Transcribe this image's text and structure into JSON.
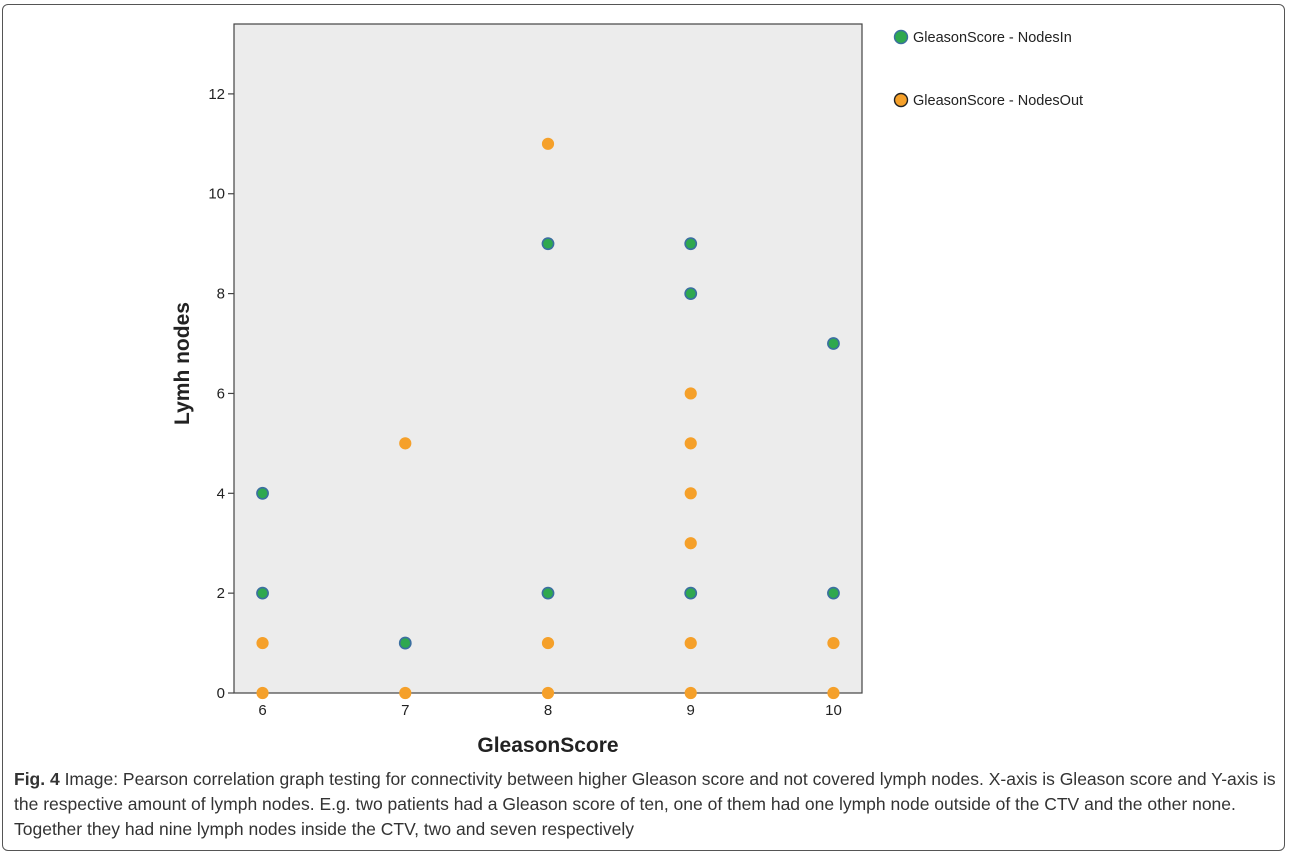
{
  "chart_data": {
    "type": "scatter",
    "xlabel": "GleasonScore",
    "ylabel": "Lymh nodes",
    "xlim": [
      5.8,
      10.2
    ],
    "ylim": [
      0,
      13.4
    ],
    "xticks": [
      6,
      7,
      8,
      9,
      10
    ],
    "yticks": [
      0,
      2,
      4,
      6,
      8,
      10,
      12
    ],
    "grid": false,
    "legend_position": "top-right, outside plot",
    "plot_background": "#ececec",
    "series": [
      {
        "name": "GleasonScore - NodesIn",
        "color": "#2fa84f",
        "stroke": "#3b6fa0",
        "points": [
          {
            "x": 6,
            "y": 4
          },
          {
            "x": 6,
            "y": 2
          },
          {
            "x": 7,
            "y": 1
          },
          {
            "x": 8,
            "y": 9
          },
          {
            "x": 8,
            "y": 2
          },
          {
            "x": 9,
            "y": 9
          },
          {
            "x": 9,
            "y": 8
          },
          {
            "x": 9,
            "y": 2
          },
          {
            "x": 10,
            "y": 7
          },
          {
            "x": 10,
            "y": 2
          }
        ]
      },
      {
        "name": "GleasonScore - NodesOut",
        "color": "#f5a02a",
        "stroke": "#f5a02a",
        "points": [
          {
            "x": 6,
            "y": 1
          },
          {
            "x": 6,
            "y": 0
          },
          {
            "x": 7,
            "y": 5
          },
          {
            "x": 7,
            "y": 0
          },
          {
            "x": 8,
            "y": 11
          },
          {
            "x": 8,
            "y": 1
          },
          {
            "x": 8,
            "y": 0
          },
          {
            "x": 9,
            "y": 6
          },
          {
            "x": 9,
            "y": 5
          },
          {
            "x": 9,
            "y": 4
          },
          {
            "x": 9,
            "y": 3
          },
          {
            "x": 9,
            "y": 1
          },
          {
            "x": 9,
            "y": 0
          },
          {
            "x": 10,
            "y": 1
          },
          {
            "x": 10,
            "y": 0
          }
        ]
      }
    ]
  },
  "caption": {
    "label": "Fig. 4",
    "text": " Image: Pearson correlation graph testing for connectivity between higher Gleason score and not covered lymph nodes. X-axis is Gleason score and Y-axis is the respective amount of lymph nodes. E.g. two patients had a Gleason score of ten, one of them had one lymph node outside of the CTV and the other none. Together they had nine lymph nodes inside the CTV, two and seven respectively"
  }
}
